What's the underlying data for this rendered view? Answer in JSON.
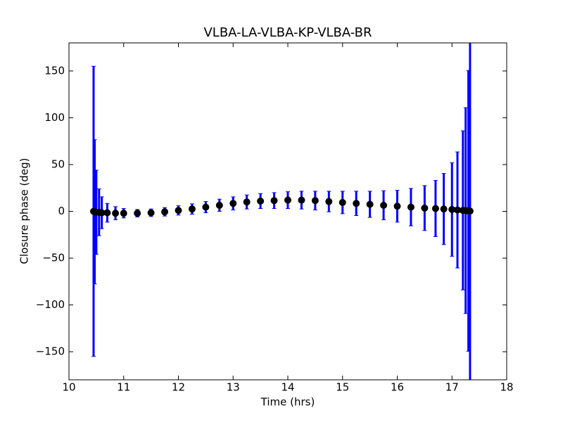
{
  "chart_data": {
    "type": "errorbar",
    "title": "VLBA-LA-VLBA-KP-VLBA-BR",
    "x_label": "Time (hrs)",
    "y_label": "Closure phase (deg)",
    "xlim": [
      10,
      18
    ],
    "ylim": [
      -180,
      180
    ],
    "xticks": [
      10,
      11,
      12,
      13,
      14,
      15,
      16,
      17,
      18
    ],
    "yticks": [
      {
        "value": -150,
        "label": "−150"
      },
      {
        "value": -100,
        "label": "−100"
      },
      {
        "value": -50,
        "label": "−50"
      },
      0,
      50,
      100,
      150
    ],
    "error_color": "#0000ff",
    "marker_color": "#000000",
    "x": [
      10.45,
      10.47,
      10.5,
      10.55,
      10.6,
      10.7,
      10.85,
      11.0,
      11.25,
      11.5,
      11.75,
      12,
      12.25,
      12.5,
      12.75,
      13,
      13.25,
      13.5,
      13.75,
      14,
      14.25,
      14.5,
      14.75,
      15,
      15.25,
      15.5,
      15.75,
      16,
      16.25,
      16.5,
      16.7,
      16.85,
      17,
      17.1,
      17.2,
      17.25,
      17.3,
      17.33
    ],
    "values": [
      0,
      -0.5,
      -1,
      -1,
      -1.5,
      -1.5,
      -2,
      -2,
      -2,
      -1.5,
      -0.5,
      1,
      2.5,
      4.5,
      6.5,
      8.5,
      10,
      11,
      11.5,
      12,
      12,
      11.5,
      10.5,
      9.5,
      8.5,
      7.5,
      6.5,
      5.5,
      4.5,
      3.5,
      3,
      2.5,
      2,
      1.5,
      1,
      0.8,
      0.5,
      0.3
    ],
    "errors": [
      155,
      77,
      45,
      25,
      17,
      10,
      7,
      5,
      4,
      4,
      4.5,
      5,
      5.5,
      6,
      6.5,
      7,
      7.5,
      8,
      8.5,
      9,
      9.5,
      10,
      11,
      12,
      13,
      14,
      15.5,
      17,
      20,
      24,
      30,
      38,
      50,
      62,
      85,
      110,
      150,
      200
    ]
  }
}
